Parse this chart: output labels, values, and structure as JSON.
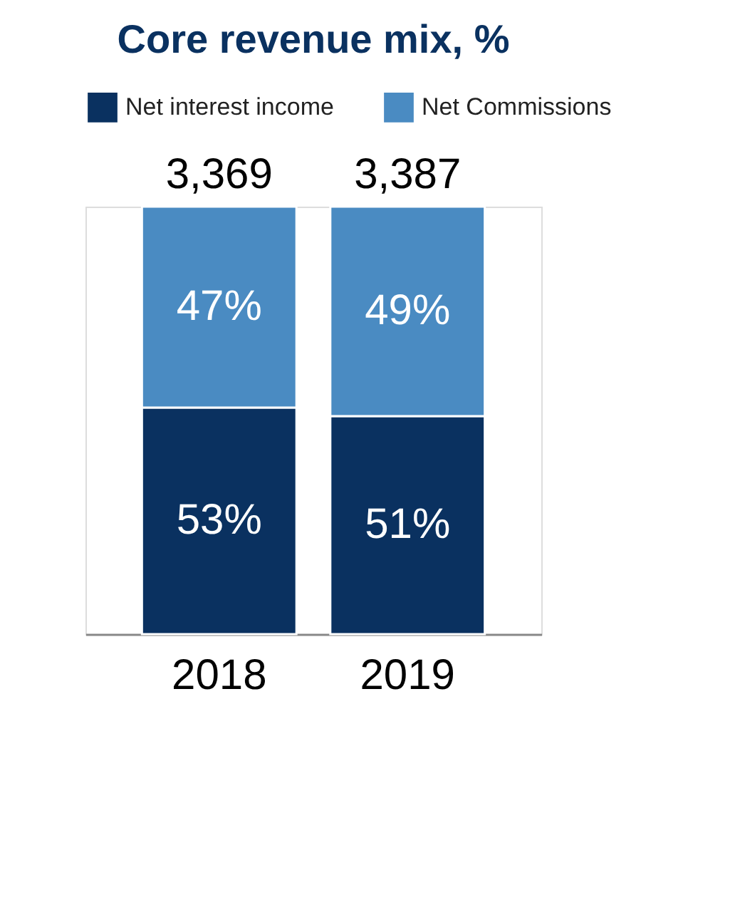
{
  "chart_data": {
    "type": "bar",
    "title": "Core revenue mix, %",
    "categories": [
      "2018",
      "2019"
    ],
    "stacked": true,
    "ylim": [
      0,
      100
    ],
    "legend": "top",
    "tick_labels": "x",
    "grid": false,
    "series": [
      {
        "name": "Net interest income",
        "color": "#0a3160",
        "values": [
          53,
          51
        ],
        "value_labels": [
          "53%",
          "51%"
        ]
      },
      {
        "name": "Net Commissions",
        "color": "#4a8bc2",
        "values": [
          47,
          49
        ],
        "value_labels": [
          "47%",
          "49%"
        ]
      }
    ],
    "annotations": [
      {
        "text": "3,369",
        "x": "2018",
        "y": 100
      },
      {
        "text": "3,387",
        "x": "2019",
        "y": 100
      }
    ]
  }
}
